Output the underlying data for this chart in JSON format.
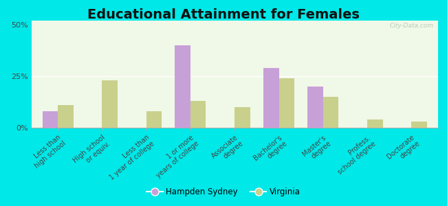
{
  "title": "Educational Attainment for Females",
  "categories": [
    "Less than\nhigh school",
    "High school\nor equiv.",
    "Less than\n1 year of college",
    "1 or more\nyears of college",
    "Associate\ndegree",
    "Bachelor's\ndegree",
    "Master's\ndegree",
    "Profess.\nschool degree",
    "Doctorate\ndegree"
  ],
  "hampden_sydney": [
    8,
    0,
    0,
    40,
    0,
    29,
    20,
    0,
    0
  ],
  "virginia": [
    11,
    23,
    8,
    13,
    10,
    24,
    15,
    4,
    3
  ],
  "hampden_color": "#c8a0d8",
  "virginia_color": "#c8d08c",
  "yticks": [
    0,
    25,
    50
  ],
  "ylim": [
    0,
    52
  ],
  "bar_width": 0.35,
  "legend_labels": [
    "Hampden Sydney",
    "Virginia"
  ],
  "title_fontsize": 14,
  "tick_fontsize": 7,
  "outer_bg": "#00e8e8",
  "plot_bg_top": "#f0f8e8",
  "plot_bg_bottom": "#d8efc8"
}
